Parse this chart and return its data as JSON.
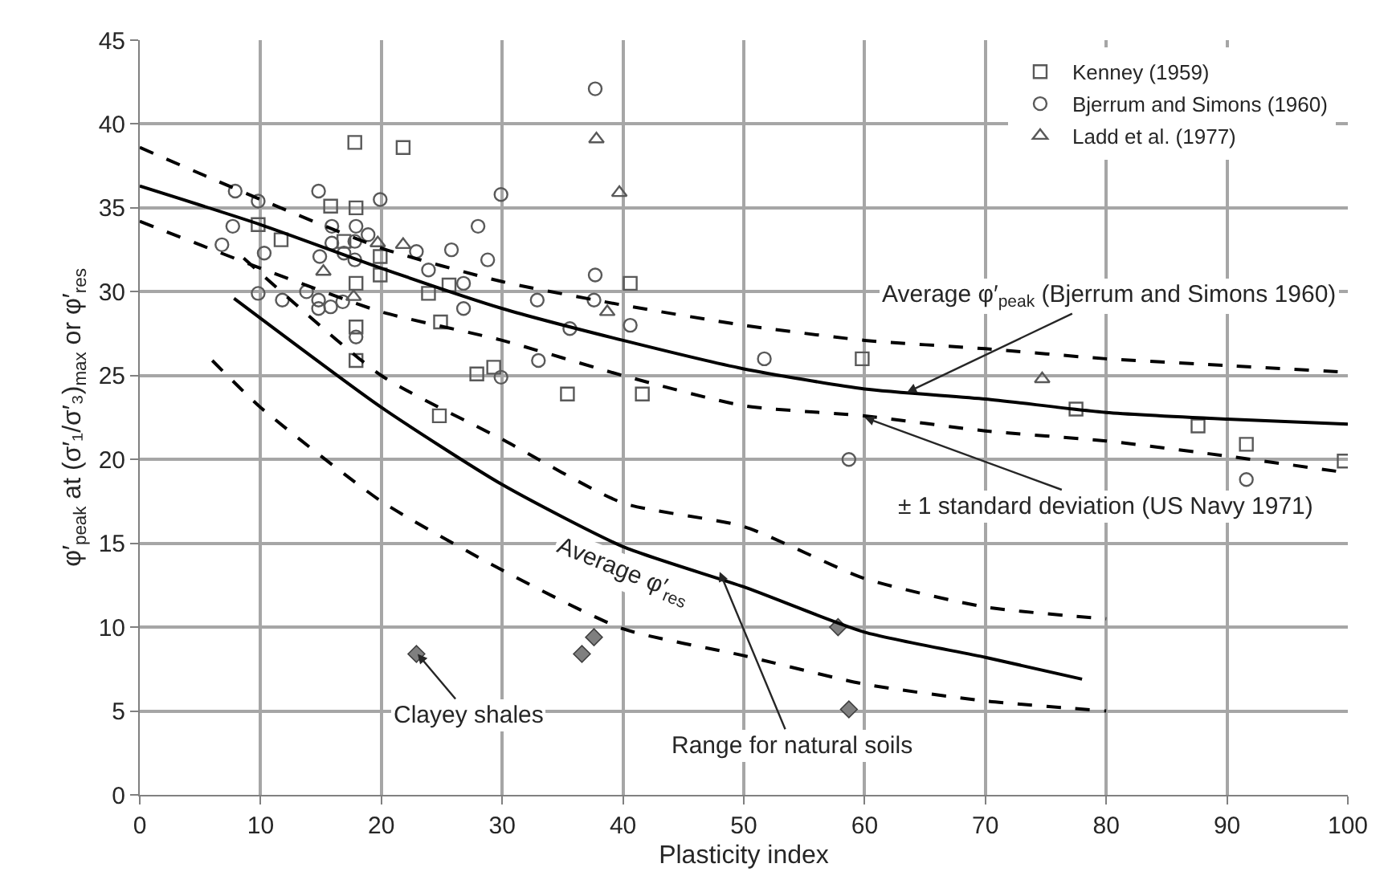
{
  "chart_data": {
    "type": "scatter",
    "xlabel": "Plasticity index",
    "ylabel": "φ′$_{peak}$ at (σ′₁/σ′₃)$_{max}$ or φ′$_{res}$",
    "xlim": [
      0,
      100
    ],
    "xticks": [
      0,
      10,
      20,
      30,
      40,
      50,
      60,
      70,
      80,
      90,
      100
    ],
    "ylim": [
      0,
      45
    ],
    "yticks": [
      0,
      5,
      10,
      15,
      20,
      25,
      30,
      35,
      40,
      45
    ],
    "grid": true,
    "legend": "top right",
    "series": [
      {
        "name": "Kenney (1959)",
        "marker": "square",
        "color": "#595959",
        "x": [
          17.8,
          21.8,
          15.8,
          17.9,
          9.8,
          11.7,
          16.9,
          19.9,
          19.9,
          17.9,
          23.9,
          25.6,
          24.9,
          17.9,
          17.9,
          27.9,
          29.3,
          24.8,
          35.4,
          41.6,
          40.6,
          59.8,
          77.5,
          87.6,
          91.6,
          99.7
        ],
        "values": [
          38.9,
          38.6,
          35.1,
          35.0,
          34.0,
          33.1,
          33.0,
          32.1,
          31.0,
          30.5,
          29.9,
          30.4,
          28.2,
          27.9,
          25.9,
          25.1,
          25.5,
          22.6,
          23.9,
          23.9,
          30.5,
          26.0,
          23.0,
          22.0,
          20.9,
          19.9
        ]
      },
      {
        "name": "Bjerrum and Simons (1960)",
        "marker": "circle",
        "color": "#595959",
        "x": [
          7.9,
          9.8,
          14.8,
          19.9,
          29.9,
          7.7,
          6.8,
          10.3,
          15.9,
          17.9,
          15.9,
          17.8,
          18.9,
          16.9,
          17.8,
          14.9,
          22.9,
          25.8,
          23.9,
          28.0,
          28.8,
          26.8,
          32.9,
          9.8,
          11.8,
          13.8,
          14.8,
          14.8,
          15.8,
          16.8,
          26.8,
          17.9,
          29.9,
          33.0,
          37.7,
          37.7,
          37.6,
          35.6,
          40.6,
          51.7,
          58.7,
          91.6
        ],
        "values": [
          36.0,
          35.4,
          36.0,
          35.5,
          35.8,
          33.9,
          32.8,
          32.3,
          33.9,
          33.9,
          32.9,
          33.0,
          33.4,
          32.3,
          31.9,
          32.1,
          32.4,
          32.5,
          31.3,
          33.9,
          31.9,
          30.5,
          29.5,
          29.9,
          29.5,
          30.0,
          29.5,
          29.0,
          29.1,
          29.4,
          29.0,
          27.3,
          24.9,
          25.9,
          42.1,
          31.0,
          29.5,
          27.8,
          28.0,
          26.0,
          20.0,
          18.8
        ]
      },
      {
        "name": "Ladd et al. (1977)",
        "marker": "triangle",
        "color": "#595959",
        "x": [
          19.7,
          21.8,
          15.2,
          17.7,
          37.8,
          39.7,
          38.7,
          74.7
        ],
        "values": [
          32.9,
          32.8,
          31.2,
          29.7,
          39.1,
          35.9,
          28.8,
          24.8
        ]
      },
      {
        "marker": "diamond",
        "color": "#7f7f7f",
        "x": [
          22.9,
          36.6,
          37.6,
          57.8,
          58.7
        ],
        "values": [
          8.4,
          8.4,
          9.4,
          10.0,
          5.1
        ]
      },
      {
        "type": "line",
        "marker": "none",
        "line_style": "solid",
        "color": "#000000",
        "x": [
          0,
          10,
          20,
          30,
          40,
          50,
          60,
          70,
          80,
          90,
          100
        ],
        "values": [
          36.3,
          34.0,
          31.4,
          29.0,
          27.1,
          25.4,
          24.2,
          23.6,
          22.8,
          22.4,
          22.1
        ]
      },
      {
        "type": "line",
        "marker": "none",
        "line_style": "dashed",
        "color": "#000000",
        "x": [
          0,
          10,
          20,
          30,
          40,
          50,
          60,
          70,
          80,
          90,
          100
        ],
        "values": [
          38.6,
          35.5,
          32.6,
          30.6,
          29.2,
          28.0,
          27.1,
          26.6,
          26.0,
          25.6,
          25.2
        ]
      },
      {
        "type": "line",
        "marker": "none",
        "line_style": "dashed",
        "color": "#000000",
        "x": [
          0,
          10,
          20,
          30,
          40,
          50,
          60,
          70,
          80,
          90,
          100
        ],
        "values": [
          34.2,
          31.4,
          28.8,
          27.1,
          25.0,
          23.2,
          22.6,
          21.7,
          21.1,
          20.2,
          19.2
        ]
      },
      {
        "type": "line",
        "marker": "none",
        "line_style": "solid",
        "color": "#000000",
        "x": [
          7.8,
          20,
          30,
          40,
          50,
          60,
          70,
          78
        ],
        "values": [
          29.6,
          23.1,
          18.5,
          14.8,
          12.4,
          9.7,
          8.2,
          6.9
        ]
      },
      {
        "type": "line",
        "marker": "none",
        "line_style": "dashed",
        "color": "#000000",
        "x": [
          8.6,
          20,
          30,
          40,
          50,
          60,
          70,
          80
        ],
        "values": [
          32.0,
          25.0,
          21.2,
          17.4,
          16.0,
          12.9,
          11.2,
          10.5
        ]
      },
      {
        "type": "line",
        "marker": "none",
        "line_style": "dashed",
        "color": "#000000",
        "x": [
          6.0,
          10,
          20,
          30,
          40,
          50,
          60,
          70,
          80
        ],
        "values": [
          25.9,
          23.1,
          17.5,
          13.4,
          9.9,
          8.3,
          6.6,
          5.6,
          5.0
        ]
      }
    ],
    "annotations": [
      {
        "text": "Average φ′$_{peak}$ (Bjerrum and Simons 1960)",
        "x": 63.5,
        "y": 24.0
      },
      {
        "text": "± 1 standard deviation (US Navy 1971)",
        "x": 60,
        "y": 22.5
      },
      "Average φ′$_{res}$",
      {
        "text": "Range for natural soils",
        "x": 48,
        "y": 13.3
      },
      {
        "text": "Clayey shales",
        "x": 23,
        "y": 8.4
      }
    ]
  }
}
